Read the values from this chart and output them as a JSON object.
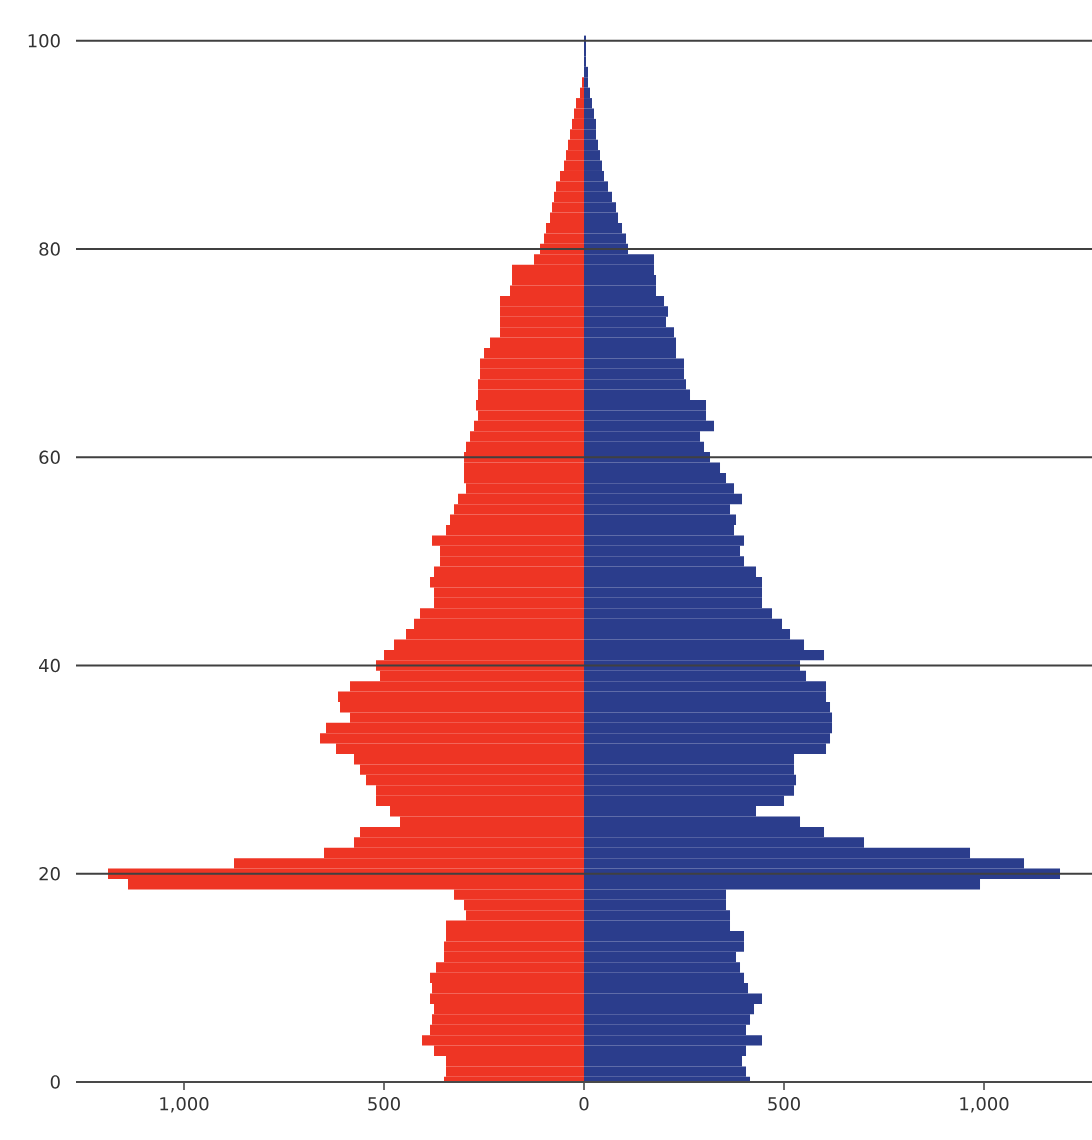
{
  "chart_data": {
    "type": "bar",
    "orientation": "horizontal",
    "x": [
      0,
      1,
      2,
      3,
      4,
      5,
      6,
      7,
      8,
      9,
      10,
      11,
      12,
      13,
      14,
      15,
      16,
      17,
      18,
      19,
      20,
      21,
      22,
      23,
      24,
      25,
      26,
      27,
      28,
      29,
      30,
      31,
      32,
      33,
      34,
      35,
      36,
      37,
      38,
      39,
      40,
      41,
      42,
      43,
      44,
      45,
      46,
      47,
      48,
      49,
      50,
      51,
      52,
      53,
      54,
      55,
      56,
      57,
      58,
      59,
      60,
      61,
      62,
      63,
      64,
      65,
      66,
      67,
      68,
      69,
      70,
      71,
      72,
      73,
      74,
      75,
      76,
      77,
      78,
      79,
      80,
      81,
      82,
      83,
      84,
      85,
      86,
      87,
      88,
      89,
      90,
      91,
      92,
      93,
      94,
      95,
      96,
      97,
      98,
      99,
      100
    ],
    "series": [
      {
        "color": "#ee3524",
        "values": [
          -350,
          -345,
          -345,
          -375,
          -405,
          -385,
          -380,
          -375,
          -385,
          -380,
          -385,
          -370,
          -350,
          -350,
          -345,
          -345,
          -295,
          -300,
          -325,
          -1140,
          -1190,
          -875,
          -650,
          -575,
          -560,
          -460,
          -485,
          -520,
          -520,
          -545,
          -560,
          -575,
          -620,
          -660,
          -645,
          -585,
          -610,
          -615,
          -585,
          -510,
          -520,
          -500,
          -475,
          -445,
          -425,
          -410,
          -375,
          -375,
          -385,
          -375,
          -360,
          -360,
          -380,
          -345,
          -335,
          -325,
          -315,
          -295,
          -300,
          -300,
          -300,
          -295,
          -285,
          -275,
          -265,
          -270,
          -265,
          -265,
          -260,
          -260,
          -250,
          -235,
          -210,
          -210,
          -210,
          -210,
          -185,
          -180,
          -180,
          -125,
          -110,
          -100,
          -95,
          -85,
          -80,
          -75,
          -70,
          -60,
          -50,
          -45,
          -40,
          -35,
          -30,
          -25,
          -20,
          -10,
          -5,
          0,
          0,
          0,
          0
        ]
      },
      {
        "color": "#2b3d8c",
        "values": [
          415,
          405,
          395,
          405,
          445,
          405,
          415,
          425,
          445,
          410,
          400,
          390,
          380,
          400,
          400,
          365,
          365,
          355,
          355,
          990,
          1190,
          1100,
          965,
          700,
          600,
          540,
          430,
          500,
          525,
          530,
          525,
          525,
          605,
          615,
          620,
          620,
          615,
          605,
          605,
          555,
          540,
          600,
          550,
          515,
          495,
          470,
          445,
          445,
          445,
          430,
          400,
          390,
          400,
          375,
          380,
          365,
          395,
          375,
          355,
          340,
          315,
          300,
          290,
          325,
          305,
          305,
          265,
          255,
          250,
          250,
          230,
          230,
          225,
          205,
          210,
          200,
          180,
          180,
          175,
          175,
          110,
          105,
          95,
          85,
          80,
          70,
          60,
          50,
          45,
          40,
          35,
          30,
          30,
          25,
          20,
          15,
          10,
          10,
          5,
          5,
          5
        ]
      }
    ],
    "xlim": [
      -1270,
      1270
    ],
    "xticks": [
      {
        "value": -1000,
        "label": "1,000"
      },
      {
        "value": -500,
        "label": "500"
      },
      0,
      500,
      {
        "value": 1000,
        "label": "1,000"
      }
    ],
    "ylim": [
      0,
      102
    ],
    "yticks": [
      0,
      20,
      40,
      60,
      80,
      100
    ],
    "grid": "y",
    "stacked": true
  }
}
